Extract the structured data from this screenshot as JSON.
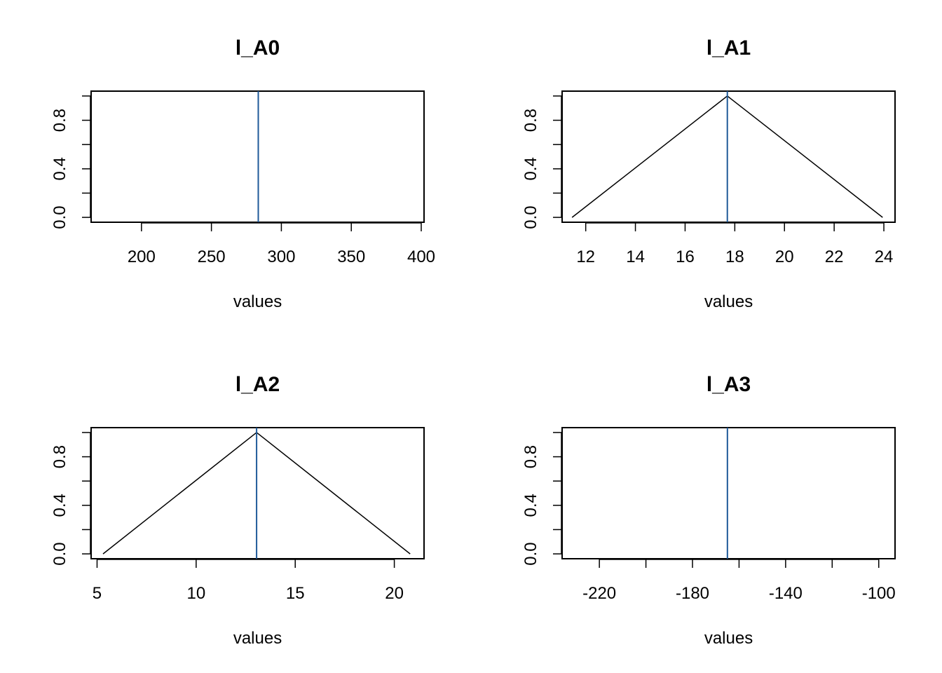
{
  "colors": {
    "marker": "#1f5a99",
    "line": "#000000"
  },
  "chart_data": [
    {
      "type": "line",
      "title": "l_A0",
      "xlabel": "values",
      "ylabel": "",
      "xlim": [
        164,
        402
      ],
      "ylim": [
        -0.04,
        1.04
      ],
      "xticks": [
        200,
        250,
        300,
        350,
        400
      ],
      "xtick_labels": [
        "200",
        "250",
        "300",
        "350",
        "400"
      ],
      "yticks": [
        0,
        0.2,
        0.4,
        0.6,
        0.8,
        1.0
      ],
      "ytick_labels": [
        "0.0",
        "",
        "0.4",
        "",
        "0.8",
        ""
      ],
      "x": [],
      "y": [],
      "vline": 283.5
    },
    {
      "type": "line",
      "title": "l_A1",
      "xlabel": "values",
      "ylabel": "",
      "xlim": [
        11.05,
        24.45
      ],
      "ylim": [
        -0.04,
        1.04
      ],
      "xticks": [
        12,
        14,
        16,
        18,
        20,
        22,
        24
      ],
      "xtick_labels": [
        "12",
        "14",
        "16",
        "18",
        "20",
        "22",
        "24"
      ],
      "yticks": [
        0,
        0.2,
        0.4,
        0.6,
        0.8,
        1.0
      ],
      "ytick_labels": [
        "0.0",
        "",
        "0.4",
        "",
        "0.8",
        ""
      ],
      "x": [
        11.45,
        17.7,
        23.95
      ],
      "y": [
        0,
        1,
        0
      ],
      "vline": 17.7
    },
    {
      "type": "line",
      "title": "l_A2",
      "xlabel": "values",
      "ylabel": "",
      "xlim": [
        4.7,
        21.5
      ],
      "ylim": [
        -0.04,
        1.04
      ],
      "xticks": [
        5,
        10,
        15,
        20
      ],
      "xtick_labels": [
        "5",
        "10",
        "15",
        "20"
      ],
      "yticks": [
        0,
        0.2,
        0.4,
        0.6,
        0.8,
        1.0
      ],
      "ytick_labels": [
        "0.0",
        "",
        "0.4",
        "",
        "0.8",
        ""
      ],
      "x": [
        5.3,
        13.05,
        20.8
      ],
      "y": [
        0,
        1,
        0
      ],
      "vline": 13.05
    },
    {
      "type": "line",
      "title": "l_A3",
      "xlabel": "values",
      "ylabel": "",
      "xlim": [
        -236,
        -93
      ],
      "ylim": [
        -0.04,
        1.04
      ],
      "xticks": [
        -220,
        -200,
        -180,
        -160,
        -140,
        -120,
        -100
      ],
      "xtick_labels": [
        "-220",
        "",
        "-180",
        "",
        "-140",
        "",
        "-100"
      ],
      "yticks": [
        0,
        0.2,
        0.4,
        0.6,
        0.8,
        1.0
      ],
      "ytick_labels": [
        "0.0",
        "",
        "0.4",
        "",
        "0.8",
        ""
      ],
      "x": [],
      "y": [],
      "vline": -165
    }
  ]
}
